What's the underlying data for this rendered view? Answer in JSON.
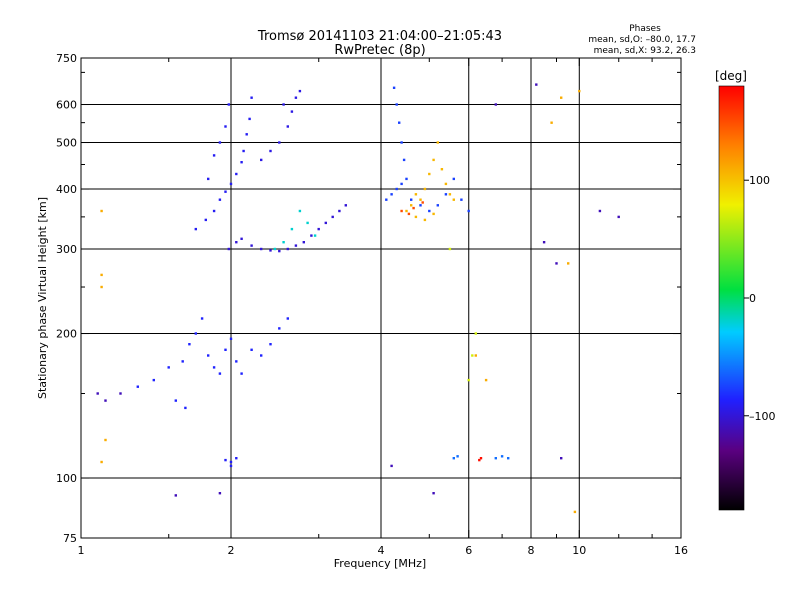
{
  "header": {
    "title_line1": "Tromsø 20141103 21:04:00–21:05:43",
    "title_line2": "RwPretec (8p)",
    "stats_label": "Phases",
    "stats_o": "mean, sd,O: –80.0, 17.7",
    "stats_x": "mean, sd,X:  93.2, 26.3"
  },
  "colorbar": {
    "unit": "[deg]",
    "ticks": [
      "100",
      "0",
      "–100"
    ],
    "tick_values": [
      100,
      0,
      -100
    ],
    "range": [
      -180,
      180
    ],
    "colors": [
      "#000000",
      "#5a0080",
      "#2020ff",
      "#00ccff",
      "#00e040",
      "#f0f000",
      "#ff8000",
      "#ff0000"
    ]
  },
  "chart_data": {
    "type": "scatter",
    "title": "Tromsø 20141103 21:04:00–21:05:43",
    "subtitle": "RwPretec (8p)",
    "xlabel": "Frequency [MHz]",
    "ylabel": "Stationary phase Virtual Height [km]",
    "xscale": "log",
    "yscale": "log",
    "xlim": [
      1,
      16
    ],
    "ylim": [
      75,
      750
    ],
    "grid": true,
    "xticks": [
      1,
      2,
      4,
      6,
      8,
      10,
      16
    ],
    "xtick_labels": [
      "1",
      "2",
      "4",
      "6",
      "8",
      "10",
      "16"
    ],
    "xgrid": [
      2,
      4,
      6,
      8,
      10
    ],
    "xminor_ticks": [
      1.5,
      3,
      5,
      7,
      9,
      12,
      14
    ],
    "yticks": [
      75,
      100,
      200,
      300,
      400,
      500,
      600,
      750
    ],
    "ytick_labels": [
      "75",
      "100",
      "200",
      "300",
      "400",
      "500",
      "600",
      "750"
    ],
    "ygrid": [
      100,
      200,
      300,
      400,
      500,
      600
    ],
    "yminor_ticks": [
      150,
      250,
      350,
      450,
      550,
      700
    ],
    "series": [
      {
        "phase": -90,
        "points": [
          [
            1.7,
            330
          ],
          [
            1.78,
            345
          ],
          [
            1.85,
            360
          ],
          [
            1.9,
            380
          ],
          [
            1.95,
            395
          ],
          [
            2.0,
            410
          ],
          [
            2.05,
            430
          ],
          [
            2.1,
            455
          ],
          [
            2.12,
            480
          ],
          [
            2.15,
            520
          ],
          [
            2.18,
            560
          ],
          [
            2.2,
            620
          ],
          [
            1.8,
            420
          ],
          [
            1.85,
            470
          ],
          [
            1.9,
            500
          ],
          [
            1.95,
            540
          ],
          [
            1.98,
            600
          ]
        ]
      },
      {
        "phase": -95,
        "points": [
          [
            2.3,
            460
          ],
          [
            2.4,
            480
          ],
          [
            2.5,
            500
          ],
          [
            2.6,
            540
          ],
          [
            2.65,
            580
          ],
          [
            2.7,
            620
          ],
          [
            2.55,
            600
          ],
          [
            2.75,
            640
          ]
        ]
      },
      {
        "phase": -100,
        "points": [
          [
            1.98,
            300
          ],
          [
            2.05,
            310
          ],
          [
            2.1,
            315
          ],
          [
            2.2,
            305
          ],
          [
            2.3,
            300
          ],
          [
            2.4,
            298
          ],
          [
            2.5,
            297
          ],
          [
            2.6,
            300
          ],
          [
            2.7,
            305
          ],
          [
            2.8,
            310
          ],
          [
            2.9,
            320
          ],
          [
            3.0,
            330
          ],
          [
            3.1,
            340
          ],
          [
            3.2,
            350
          ],
          [
            3.3,
            360
          ],
          [
            3.4,
            370
          ]
        ]
      },
      {
        "phase": -20,
        "points": [
          [
            2.45,
            300
          ],
          [
            2.55,
            310
          ],
          [
            2.65,
            330
          ],
          [
            2.75,
            360
          ],
          [
            2.85,
            340
          ],
          [
            2.95,
            320
          ]
        ]
      },
      {
        "phase": -85,
        "points": [
          [
            1.3,
            155
          ],
          [
            1.4,
            160
          ],
          [
            1.5,
            170
          ],
          [
            1.6,
            175
          ],
          [
            1.65,
            190
          ],
          [
            1.7,
            200
          ],
          [
            1.75,
            215
          ],
          [
            1.8,
            180
          ],
          [
            1.85,
            170
          ],
          [
            1.9,
            165
          ],
          [
            1.95,
            185
          ],
          [
            2.0,
            195
          ],
          [
            2.05,
            175
          ],
          [
            2.1,
            165
          ],
          [
            2.2,
            185
          ],
          [
            2.3,
            180
          ],
          [
            2.4,
            190
          ],
          [
            2.5,
            205
          ],
          [
            2.6,
            215
          ],
          [
            1.55,
            145
          ],
          [
            1.62,
            140
          ]
        ]
      },
      {
        "phase": -88,
        "points": [
          [
            1.95,
            109
          ],
          [
            2.0,
            108
          ],
          [
            2.05,
            110
          ],
          [
            2.0,
            106
          ]
        ]
      },
      {
        "phase": -75,
        "points": [
          [
            4.1,
            380
          ],
          [
            4.2,
            390
          ],
          [
            4.3,
            400
          ],
          [
            4.4,
            410
          ],
          [
            4.5,
            420
          ],
          [
            4.45,
            460
          ],
          [
            4.4,
            500
          ],
          [
            4.35,
            550
          ],
          [
            4.3,
            600
          ],
          [
            4.25,
            650
          ],
          [
            4.6,
            380
          ],
          [
            4.8,
            370
          ],
          [
            5.0,
            360
          ],
          [
            5.2,
            370
          ],
          [
            5.4,
            390
          ],
          [
            5.6,
            420
          ],
          [
            5.8,
            380
          ],
          [
            6.0,
            360
          ]
        ]
      },
      {
        "phase": 105,
        "points": [
          [
            4.5,
            360
          ],
          [
            4.6,
            370
          ],
          [
            4.7,
            390
          ],
          [
            4.8,
            380
          ],
          [
            4.9,
            400
          ],
          [
            5.0,
            430
          ],
          [
            5.1,
            460
          ],
          [
            5.2,
            500
          ],
          [
            5.3,
            440
          ],
          [
            5.4,
            410
          ],
          [
            5.5,
            390
          ],
          [
            5.6,
            380
          ],
          [
            4.7,
            350
          ],
          [
            4.9,
            345
          ],
          [
            5.1,
            355
          ]
        ]
      },
      {
        "phase": 150,
        "points": [
          [
            4.4,
            360
          ],
          [
            4.55,
            355
          ],
          [
            4.65,
            365
          ],
          [
            4.85,
            375
          ]
        ]
      },
      {
        "phase": 70,
        "points": [
          [
            5.5,
            300
          ],
          [
            6.2,
            200
          ],
          [
            6.1,
            180
          ],
          [
            6.0,
            160
          ]
        ]
      },
      {
        "phase": -60,
        "points": [
          [
            6.8,
            110
          ],
          [
            7.0,
            111
          ],
          [
            7.2,
            110
          ],
          [
            5.6,
            110
          ],
          [
            5.7,
            111
          ]
        ]
      },
      {
        "phase": 175,
        "points": [
          [
            6.3,
            109
          ],
          [
            6.35,
            110
          ]
        ]
      },
      {
        "phase": -110,
        "points": [
          [
            1.08,
            150
          ],
          [
            1.12,
            145
          ],
          [
            1.2,
            150
          ],
          [
            1.55,
            92
          ],
          [
            1.9,
            93
          ],
          [
            4.2,
            106
          ],
          [
            5.1,
            93
          ],
          [
            8.5,
            310
          ],
          [
            9.0,
            280
          ],
          [
            9.2,
            110
          ],
          [
            12.0,
            350
          ],
          [
            11.0,
            360
          ],
          [
            8.2,
            660
          ],
          [
            6.8,
            600
          ]
        ]
      },
      {
        "phase": 110,
        "points": [
          [
            1.1,
            360
          ],
          [
            1.1,
            265
          ],
          [
            1.1,
            250
          ],
          [
            1.12,
            120
          ],
          [
            1.1,
            108
          ],
          [
            9.5,
            280
          ],
          [
            9.8,
            85
          ],
          [
            10.0,
            640
          ],
          [
            9.2,
            620
          ],
          [
            8.8,
            550
          ],
          [
            6.5,
            160
          ],
          [
            6.2,
            180
          ]
        ]
      }
    ]
  }
}
